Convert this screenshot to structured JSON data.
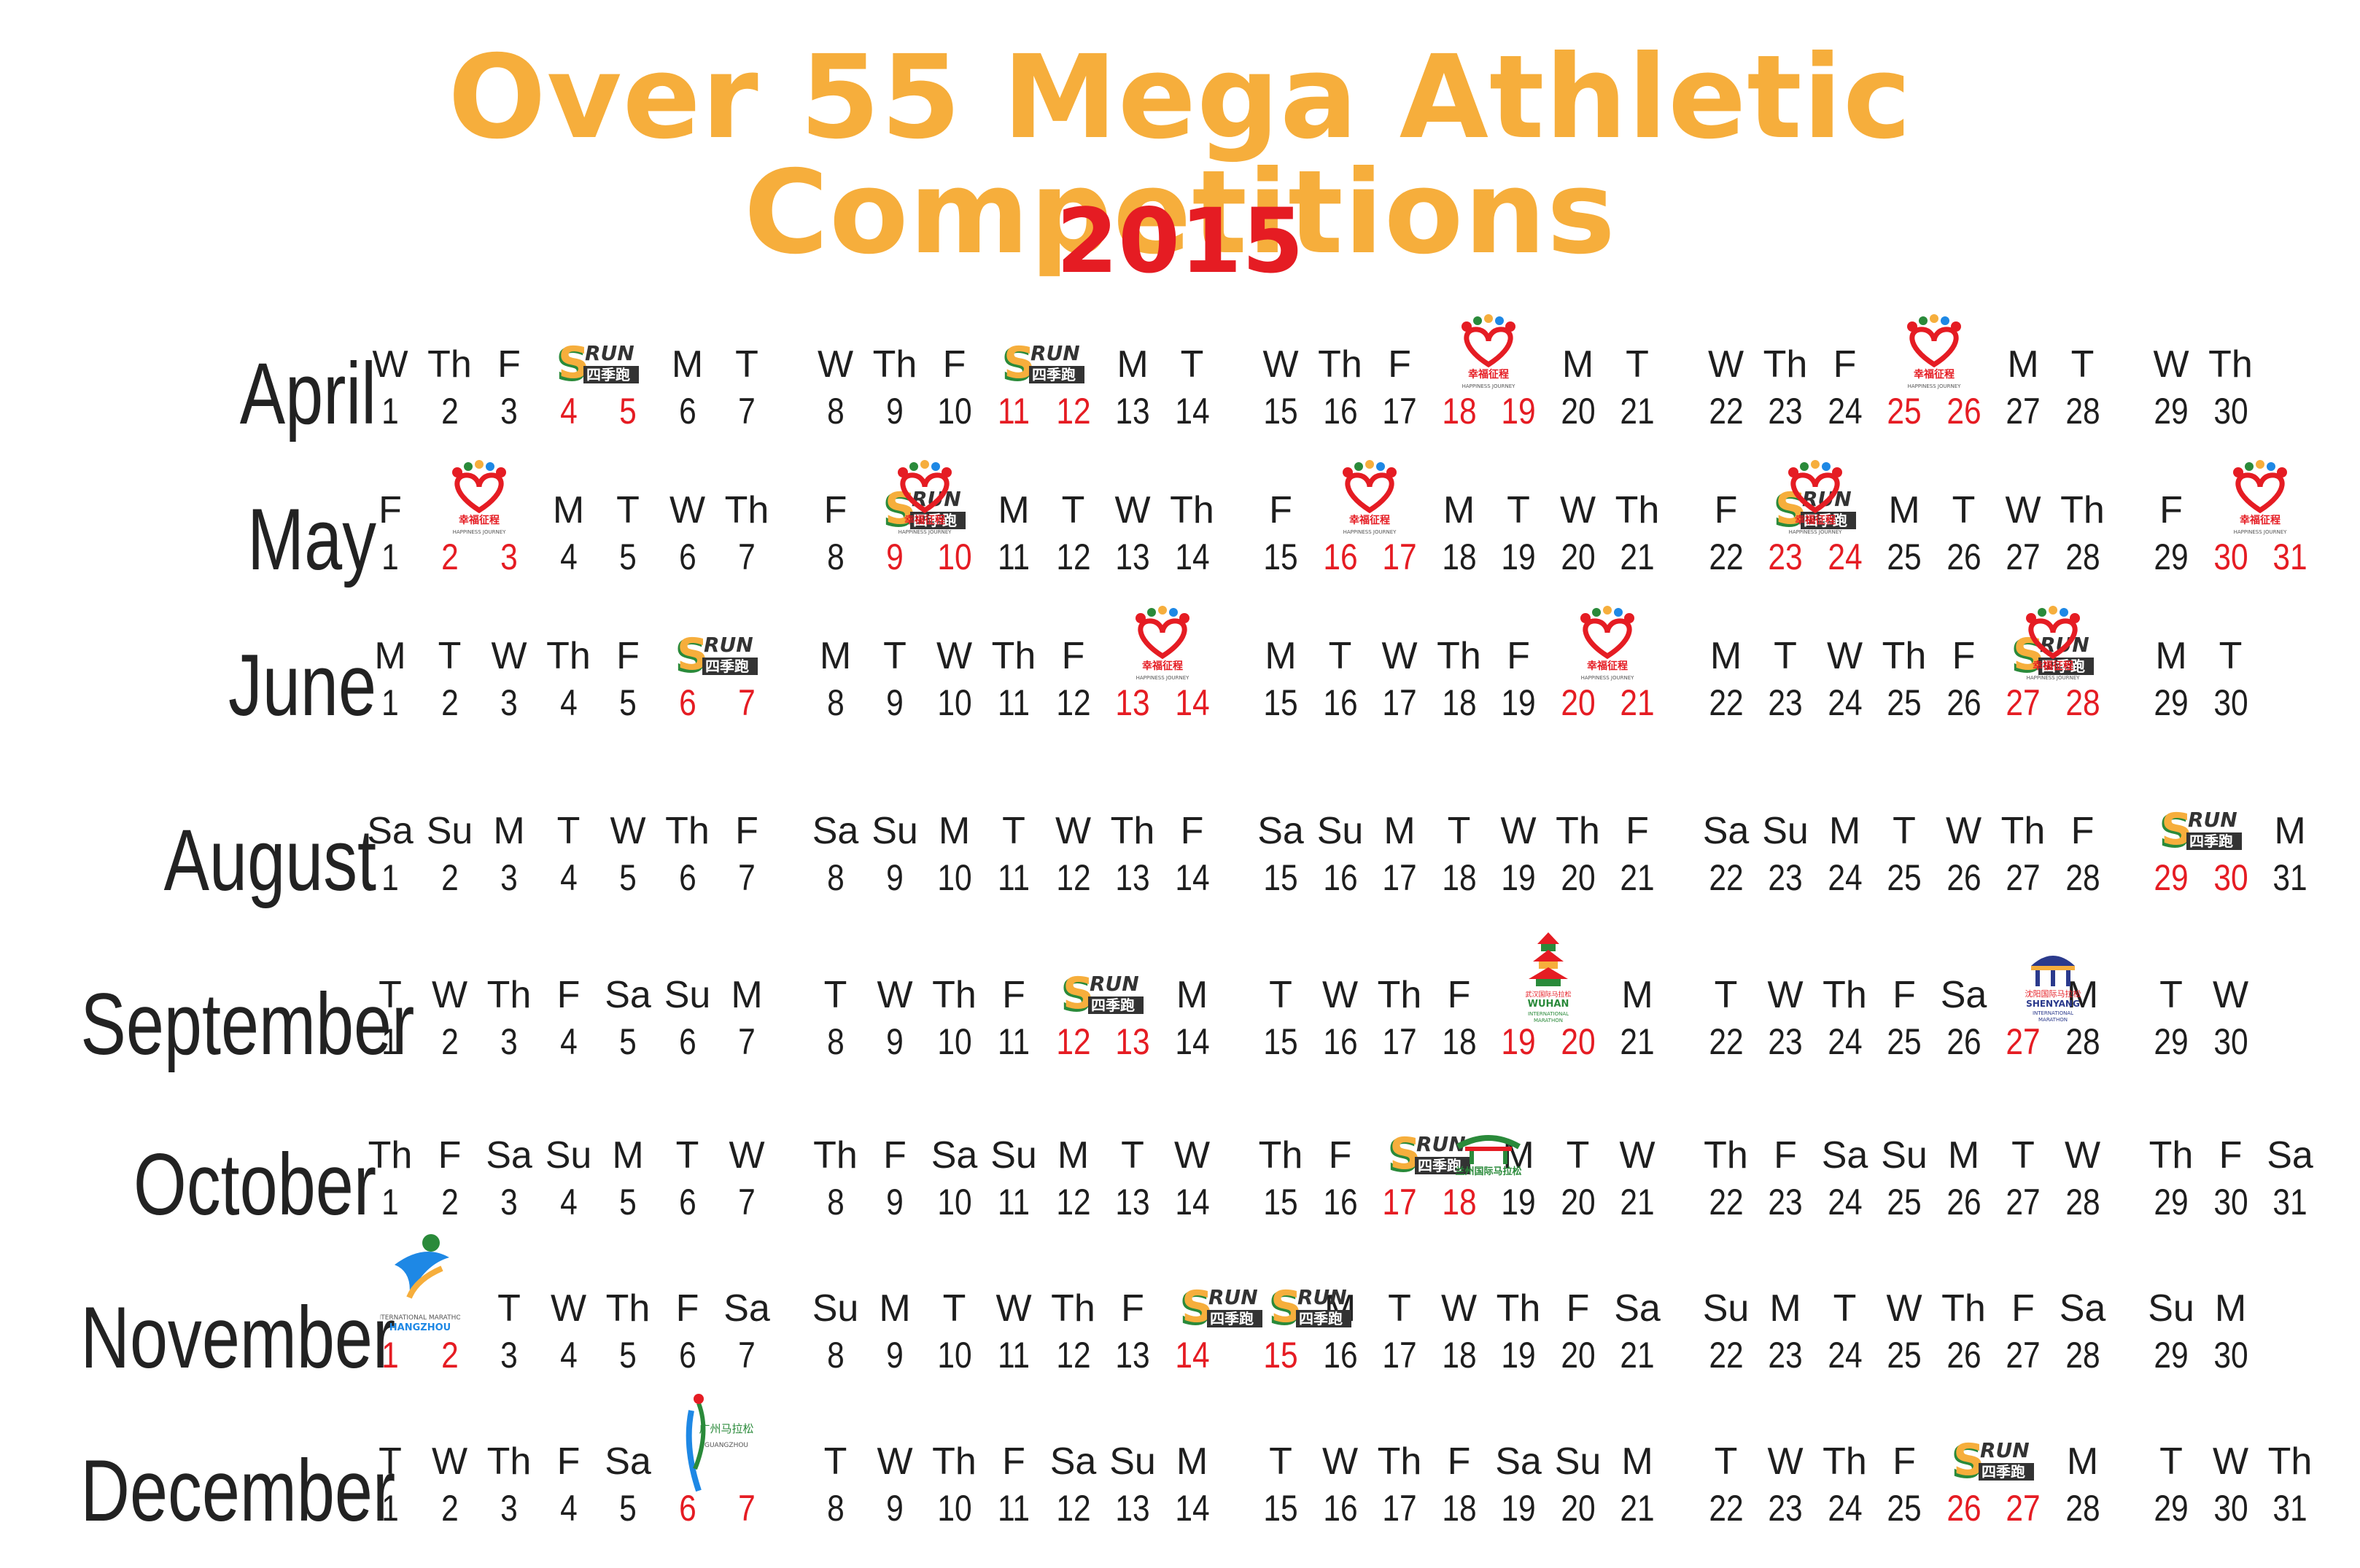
{
  "header": {
    "title": "Over 55 Mega Athletic Competitions",
    "year": "2015"
  },
  "colors": {
    "title": "#f6ae3c",
    "year": "#e51c23",
    "event_date": "#e51c23",
    "text": "#1e1e1e"
  },
  "icons": {
    "srun": {
      "name": "srun-logo-icon",
      "lettering": "SRUN 四季跑"
    },
    "happiness": {
      "name": "happiness-heart-logo-icon",
      "lettering": "幸福征程 HAPPINESS JOURNEY"
    },
    "wuhan": {
      "name": "wuhan-marathon-logo-icon",
      "lettering": "武汉国际马拉松 WUHAN INTERNATIONAL MARATHON"
    },
    "shenyang": {
      "name": "shenyang-marathon-logo-icon",
      "lettering": "沈阳国际马拉松 SHENYANG INTERNATIONAL MARATHON"
    },
    "lanzhou": {
      "name": "lanzhou-marathon-logo-icon",
      "lettering": "兰州国际马拉松"
    },
    "hangzhou": {
      "name": "hangzhou-marathon-logo-icon",
      "lettering": "HANGZHOU"
    },
    "guangzhou": {
      "name": "guangzhou-marathon-logo-icon",
      "lettering": "广州马拉松"
    }
  },
  "months": [
    {
      "name": "April",
      "days": [
        {
          "dow": "W",
          "d": 1
        },
        {
          "dow": "Th",
          "d": 2
        },
        {
          "dow": "F",
          "d": 3
        },
        {
          "dow": "",
          "d": 4,
          "event": true
        },
        {
          "dow": "",
          "d": 5,
          "event": true
        },
        {
          "dow": "M",
          "d": 6
        },
        {
          "dow": "T",
          "d": 7
        },
        {
          "dow": "W",
          "d": 8
        },
        {
          "dow": "Th",
          "d": 9
        },
        {
          "dow": "F",
          "d": 10
        },
        {
          "dow": "",
          "d": 11,
          "event": true
        },
        {
          "dow": "",
          "d": 12,
          "event": true
        },
        {
          "dow": "M",
          "d": 13
        },
        {
          "dow": "T",
          "d": 14
        },
        {
          "dow": "W",
          "d": 15
        },
        {
          "dow": "Th",
          "d": 16
        },
        {
          "dow": "F",
          "d": 17
        },
        {
          "dow": "",
          "d": 18,
          "event": true
        },
        {
          "dow": "",
          "d": 19,
          "event": true
        },
        {
          "dow": "M",
          "d": 20
        },
        {
          "dow": "T",
          "d": 21
        },
        {
          "dow": "W",
          "d": 22
        },
        {
          "dow": "Th",
          "d": 23
        },
        {
          "dow": "F",
          "d": 24
        },
        {
          "dow": "",
          "d": 25,
          "event": true
        },
        {
          "dow": "",
          "d": 26,
          "event": true
        },
        {
          "dow": "M",
          "d": 27
        },
        {
          "dow": "T",
          "d": 28
        },
        {
          "dow": "W",
          "d": 29
        },
        {
          "dow": "Th",
          "d": 30
        }
      ],
      "logos": [
        {
          "type": "srun",
          "over": 4
        },
        {
          "type": "srun",
          "over": 11
        },
        {
          "type": "happiness",
          "over": 18
        },
        {
          "type": "happiness",
          "over": 25
        }
      ]
    },
    {
      "name": "May",
      "days": [
        {
          "dow": "F",
          "d": 1
        },
        {
          "dow": "",
          "d": 2,
          "event": true
        },
        {
          "dow": "",
          "d": 3,
          "event": true
        },
        {
          "dow": "M",
          "d": 4
        },
        {
          "dow": "T",
          "d": 5
        },
        {
          "dow": "W",
          "d": 6
        },
        {
          "dow": "Th",
          "d": 7
        },
        {
          "dow": "F",
          "d": 8
        },
        {
          "dow": "",
          "d": 9,
          "event": true
        },
        {
          "dow": "",
          "d": 10,
          "event": true
        },
        {
          "dow": "M",
          "d": 11
        },
        {
          "dow": "T",
          "d": 12
        },
        {
          "dow": "W",
          "d": 13
        },
        {
          "dow": "Th",
          "d": 14
        },
        {
          "dow": "F",
          "d": 15
        },
        {
          "dow": "",
          "d": 16,
          "event": true
        },
        {
          "dow": "",
          "d": 17,
          "event": true
        },
        {
          "dow": "M",
          "d": 18
        },
        {
          "dow": "T",
          "d": 19
        },
        {
          "dow": "W",
          "d": 20
        },
        {
          "dow": "Th",
          "d": 21
        },
        {
          "dow": "F",
          "d": 22
        },
        {
          "dow": "",
          "d": 23,
          "event": true
        },
        {
          "dow": "",
          "d": 24,
          "event": true
        },
        {
          "dow": "M",
          "d": 25
        },
        {
          "dow": "T",
          "d": 26
        },
        {
          "dow": "W",
          "d": 27
        },
        {
          "dow": "Th",
          "d": 28
        },
        {
          "dow": "F",
          "d": 29
        },
        {
          "dow": "",
          "d": 30,
          "event": true
        },
        {
          "dow": "",
          "d": 31,
          "event": true
        }
      ],
      "logos": [
        {
          "type": "happiness",
          "over": 2
        },
        {
          "type": "srun",
          "over": 9
        },
        {
          "type": "happiness",
          "over": 9
        },
        {
          "type": "happiness",
          "over": 16
        },
        {
          "type": "srun",
          "over": 23
        },
        {
          "type": "happiness",
          "over": 23
        },
        {
          "type": "happiness",
          "over": 30
        }
      ]
    },
    {
      "name": "June",
      "days": [
        {
          "dow": "M",
          "d": 1
        },
        {
          "dow": "T",
          "d": 2
        },
        {
          "dow": "W",
          "d": 3
        },
        {
          "dow": "Th",
          "d": 4
        },
        {
          "dow": "F",
          "d": 5
        },
        {
          "dow": "",
          "d": 6,
          "event": true
        },
        {
          "dow": "",
          "d": 7,
          "event": true
        },
        {
          "dow": "M",
          "d": 8
        },
        {
          "dow": "T",
          "d": 9
        },
        {
          "dow": "W",
          "d": 10
        },
        {
          "dow": "Th",
          "d": 11
        },
        {
          "dow": "F",
          "d": 12
        },
        {
          "dow": "",
          "d": 13,
          "event": true
        },
        {
          "dow": "",
          "d": 14,
          "event": true
        },
        {
          "dow": "M",
          "d": 15
        },
        {
          "dow": "T",
          "d": 16
        },
        {
          "dow": "W",
          "d": 17
        },
        {
          "dow": "Th",
          "d": 18
        },
        {
          "dow": "F",
          "d": 19
        },
        {
          "dow": "",
          "d": 20,
          "event": true
        },
        {
          "dow": "",
          "d": 21,
          "event": true
        },
        {
          "dow": "M",
          "d": 22
        },
        {
          "dow": "T",
          "d": 23
        },
        {
          "dow": "W",
          "d": 24
        },
        {
          "dow": "Th",
          "d": 25
        },
        {
          "dow": "F",
          "d": 26
        },
        {
          "dow": "",
          "d": 27,
          "event": true
        },
        {
          "dow": "",
          "d": 28,
          "event": true
        },
        {
          "dow": "M",
          "d": 29
        },
        {
          "dow": "T",
          "d": 30
        }
      ],
      "logos": [
        {
          "type": "srun",
          "over": 6
        },
        {
          "type": "happiness",
          "over": 13
        },
        {
          "type": "happiness",
          "over": 20
        },
        {
          "type": "srun",
          "over": 27
        },
        {
          "type": "happiness",
          "over": 27
        }
      ]
    },
    {
      "name": "August",
      "days": [
        {
          "dow": "Sa",
          "d": 1
        },
        {
          "dow": "Su",
          "d": 2
        },
        {
          "dow": "M",
          "d": 3
        },
        {
          "dow": "T",
          "d": 4
        },
        {
          "dow": "W",
          "d": 5
        },
        {
          "dow": "Th",
          "d": 6
        },
        {
          "dow": "F",
          "d": 7
        },
        {
          "dow": "Sa",
          "d": 8
        },
        {
          "dow": "Su",
          "d": 9
        },
        {
          "dow": "M",
          "d": 10
        },
        {
          "dow": "T",
          "d": 11
        },
        {
          "dow": "W",
          "d": 12
        },
        {
          "dow": "Th",
          "d": 13
        },
        {
          "dow": "F",
          "d": 14
        },
        {
          "dow": "Sa",
          "d": 15
        },
        {
          "dow": "Su",
          "d": 16
        },
        {
          "dow": "M",
          "d": 17
        },
        {
          "dow": "T",
          "d": 18
        },
        {
          "dow": "W",
          "d": 19
        },
        {
          "dow": "Th",
          "d": 20
        },
        {
          "dow": "F",
          "d": 21
        },
        {
          "dow": "Sa",
          "d": 22
        },
        {
          "dow": "Su",
          "d": 23
        },
        {
          "dow": "M",
          "d": 24
        },
        {
          "dow": "T",
          "d": 25
        },
        {
          "dow": "W",
          "d": 26
        },
        {
          "dow": "Th",
          "d": 27
        },
        {
          "dow": "F",
          "d": 28
        },
        {
          "dow": "",
          "d": 29,
          "event": true
        },
        {
          "dow": "",
          "d": 30,
          "event": true
        },
        {
          "dow": "M",
          "d": 31
        }
      ],
      "logos": [
        {
          "type": "srun",
          "over": 29
        }
      ]
    },
    {
      "name": "September",
      "days": [
        {
          "dow": "T",
          "d": 1
        },
        {
          "dow": "W",
          "d": 2
        },
        {
          "dow": "Th",
          "d": 3
        },
        {
          "dow": "F",
          "d": 4
        },
        {
          "dow": "Sa",
          "d": 5
        },
        {
          "dow": "Su",
          "d": 6
        },
        {
          "dow": "M",
          "d": 7
        },
        {
          "dow": "T",
          "d": 8
        },
        {
          "dow": "W",
          "d": 9
        },
        {
          "dow": "Th",
          "d": 10
        },
        {
          "dow": "F",
          "d": 11
        },
        {
          "dow": "",
          "d": 12,
          "event": true
        },
        {
          "dow": "",
          "d": 13,
          "event": true
        },
        {
          "dow": "M",
          "d": 14
        },
        {
          "dow": "T",
          "d": 15
        },
        {
          "dow": "W",
          "d": 16
        },
        {
          "dow": "Th",
          "d": 17
        },
        {
          "dow": "F",
          "d": 18
        },
        {
          "dow": "",
          "d": 19,
          "event": true
        },
        {
          "dow": "",
          "d": 20,
          "event": true
        },
        {
          "dow": "M",
          "d": 21
        },
        {
          "dow": "T",
          "d": 22
        },
        {
          "dow": "W",
          "d": 23
        },
        {
          "dow": "Th",
          "d": 24
        },
        {
          "dow": "F",
          "d": 25
        },
        {
          "dow": "Sa",
          "d": 26
        },
        {
          "dow": "",
          "d": 27,
          "event": true
        },
        {
          "dow": "M",
          "d": 28
        },
        {
          "dow": "T",
          "d": 29
        },
        {
          "dow": "W",
          "d": 30
        }
      ],
      "logos": [
        {
          "type": "srun",
          "over": 12
        },
        {
          "type": "wuhan",
          "over": 19
        },
        {
          "type": "shenyang",
          "over": 27
        }
      ]
    },
    {
      "name": "October",
      "days": [
        {
          "dow": "Th",
          "d": 1
        },
        {
          "dow": "F",
          "d": 2
        },
        {
          "dow": "Sa",
          "d": 3
        },
        {
          "dow": "Su",
          "d": 4
        },
        {
          "dow": "M",
          "d": 5
        },
        {
          "dow": "T",
          "d": 6
        },
        {
          "dow": "W",
          "d": 7
        },
        {
          "dow": "Th",
          "d": 8
        },
        {
          "dow": "F",
          "d": 9
        },
        {
          "dow": "Sa",
          "d": 10
        },
        {
          "dow": "Su",
          "d": 11
        },
        {
          "dow": "M",
          "d": 12
        },
        {
          "dow": "T",
          "d": 13
        },
        {
          "dow": "W",
          "d": 14
        },
        {
          "dow": "Th",
          "d": 15
        },
        {
          "dow": "F",
          "d": 16
        },
        {
          "dow": "",
          "d": 17,
          "event": true
        },
        {
          "dow": "",
          "d": 18,
          "event": true
        },
        {
          "dow": "M",
          "d": 19
        },
        {
          "dow": "T",
          "d": 20
        },
        {
          "dow": "W",
          "d": 21
        },
        {
          "dow": "Th",
          "d": 22
        },
        {
          "dow": "F",
          "d": 23
        },
        {
          "dow": "Sa",
          "d": 24
        },
        {
          "dow": "Su",
          "d": 25
        },
        {
          "dow": "M",
          "d": 26
        },
        {
          "dow": "T",
          "d": 27
        },
        {
          "dow": "W",
          "d": 28
        },
        {
          "dow": "Th",
          "d": 29
        },
        {
          "dow": "F",
          "d": 30
        },
        {
          "dow": "Sa",
          "d": 31
        }
      ],
      "logos": [
        {
          "type": "srun",
          "over": 17
        },
        {
          "type": "lanzhou",
          "over": 18
        }
      ]
    },
    {
      "name": "November",
      "days": [
        {
          "dow": "",
          "d": 1,
          "event": true
        },
        {
          "dow": "",
          "d": 2,
          "event": true
        },
        {
          "dow": "T",
          "d": 3
        },
        {
          "dow": "W",
          "d": 4
        },
        {
          "dow": "Th",
          "d": 5
        },
        {
          "dow": "F",
          "d": 6
        },
        {
          "dow": "Sa",
          "d": 7
        },
        {
          "dow": "Su",
          "d": 8
        },
        {
          "dow": "M",
          "d": 9
        },
        {
          "dow": "T",
          "d": 10
        },
        {
          "dow": "W",
          "d": 11
        },
        {
          "dow": "Th",
          "d": 12
        },
        {
          "dow": "F",
          "d": 13
        },
        {
          "dow": "",
          "d": 14,
          "event": true
        },
        {
          "dow": "",
          "d": 15,
          "event": true
        },
        {
          "dow": "M",
          "d": 16
        },
        {
          "dow": "T",
          "d": 17
        },
        {
          "dow": "W",
          "d": 18
        },
        {
          "dow": "Th",
          "d": 19
        },
        {
          "dow": "F",
          "d": 20
        },
        {
          "dow": "Sa",
          "d": 21
        },
        {
          "dow": "Su",
          "d": 22
        },
        {
          "dow": "M",
          "d": 23
        },
        {
          "dow": "T",
          "d": 24
        },
        {
          "dow": "W",
          "d": 25
        },
        {
          "dow": "Th",
          "d": 26
        },
        {
          "dow": "F",
          "d": 27
        },
        {
          "dow": "Sa",
          "d": 28
        },
        {
          "dow": "Su",
          "d": 29
        },
        {
          "dow": "M",
          "d": 30
        }
      ],
      "logos": [
        {
          "type": "hangzhou",
          "over": 1
        },
        {
          "type": "srun",
          "over": 14
        },
        {
          "type": "srun",
          "over": 15
        }
      ]
    },
    {
      "name": "December",
      "days": [
        {
          "dow": "T",
          "d": 1
        },
        {
          "dow": "W",
          "d": 2
        },
        {
          "dow": "Th",
          "d": 3
        },
        {
          "dow": "F",
          "d": 4
        },
        {
          "dow": "Sa",
          "d": 5
        },
        {
          "dow": "",
          "d": 6,
          "event": true
        },
        {
          "dow": "",
          "d": 7,
          "event": true
        },
        {
          "dow": "T",
          "d": 8
        },
        {
          "dow": "W",
          "d": 9
        },
        {
          "dow": "Th",
          "d": 10
        },
        {
          "dow": "F",
          "d": 11
        },
        {
          "dow": "Sa",
          "d": 12
        },
        {
          "dow": "Su",
          "d": 13
        },
        {
          "dow": "M",
          "d": 14
        },
        {
          "dow": "T",
          "d": 15
        },
        {
          "dow": "W",
          "d": 16
        },
        {
          "dow": "Th",
          "d": 17
        },
        {
          "dow": "F",
          "d": 18
        },
        {
          "dow": "Sa",
          "d": 19
        },
        {
          "dow": "Su",
          "d": 20
        },
        {
          "dow": "M",
          "d": 21
        },
        {
          "dow": "T",
          "d": 22
        },
        {
          "dow": "W",
          "d": 23
        },
        {
          "dow": "Th",
          "d": 24
        },
        {
          "dow": "F",
          "d": 25
        },
        {
          "dow": "",
          "d": 26,
          "event": true
        },
        {
          "dow": "",
          "d": 27,
          "event": true
        },
        {
          "dow": "M",
          "d": 28
        },
        {
          "dow": "T",
          "d": 29
        },
        {
          "dow": "W",
          "d": 30
        },
        {
          "dow": "Th",
          "d": 31
        }
      ],
      "logos": [
        {
          "type": "guangzhou",
          "over": 6
        },
        {
          "type": "srun",
          "over": 26
        }
      ]
    }
  ]
}
